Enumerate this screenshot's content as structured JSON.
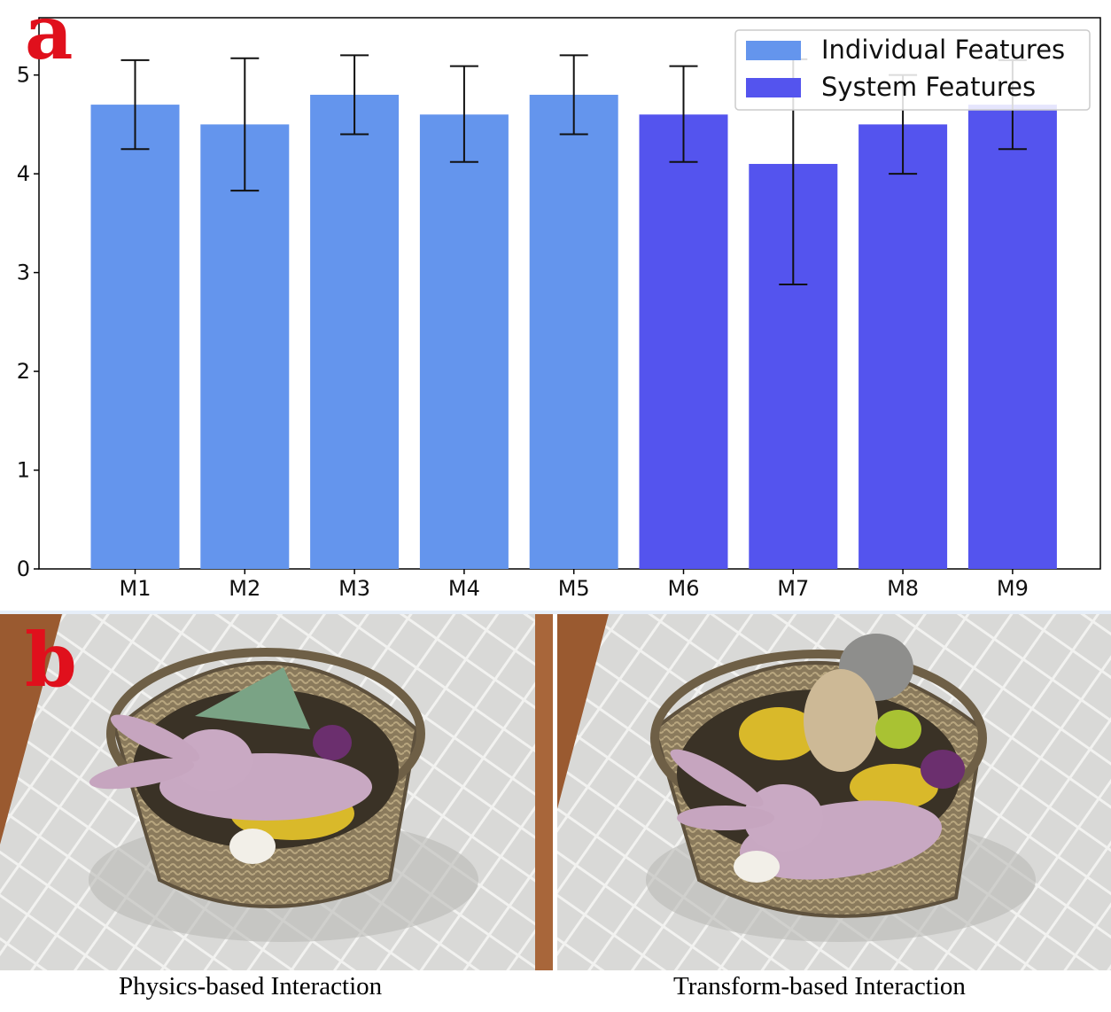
{
  "panel_a": {
    "letter": "a",
    "letter_color": "#e0101c"
  },
  "chart_data": {
    "type": "bar",
    "categories": [
      "M1",
      "M2",
      "M3",
      "M4",
      "M5",
      "M6",
      "M7",
      "M8",
      "M9"
    ],
    "values": [
      4.7,
      4.5,
      4.8,
      4.6,
      4.8,
      4.6,
      4.1,
      4.5,
      4.7
    ],
    "error_low": [
      4.25,
      3.83,
      4.4,
      4.12,
      4.4,
      4.12,
      2.88,
      4.0,
      4.25
    ],
    "error_high": [
      5.15,
      5.17,
      5.2,
      5.09,
      5.2,
      5.09,
      5.16,
      5.0,
      5.15
    ],
    "bar_group": [
      "Individual Features",
      "Individual Features",
      "Individual Features",
      "Individual Features",
      "Individual Features",
      "System Features",
      "System Features",
      "System Features",
      "System Features"
    ],
    "series": [
      {
        "name": "Individual Features",
        "color": "#6495ed"
      },
      {
        "name": "System Features",
        "color": "#5454ee"
      }
    ],
    "yticks": [
      0,
      1,
      2,
      3,
      4,
      5
    ],
    "ylim": [
      0,
      5.58
    ],
    "title": "",
    "xlabel": "",
    "ylabel": "",
    "legend_position": "top-right",
    "grid": false
  },
  "panel_b": {
    "letter": "b",
    "letter_color": "#e0101c",
    "captions": [
      "Physics-based Interaction",
      "Transform-based Interaction"
    ]
  }
}
